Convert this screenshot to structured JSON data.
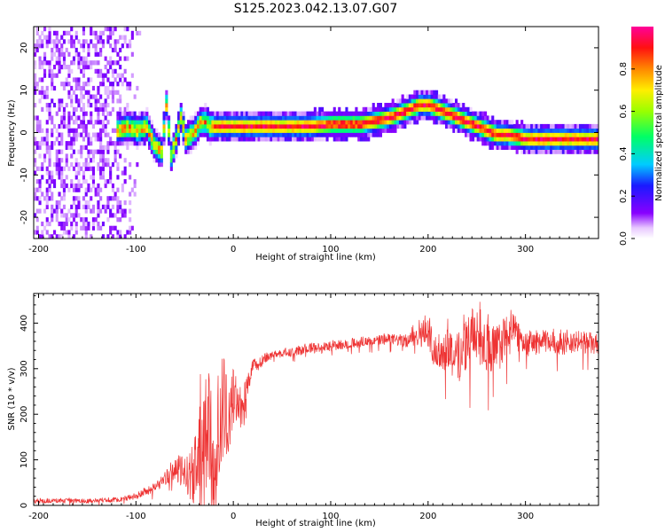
{
  "figure_title": "S125.2023.042.13.07.G07",
  "colors": {
    "snr_line": "#ee3333",
    "frame": "#000000"
  },
  "chart_data": [
    {
      "type": "heatmap",
      "title": "",
      "xlabel": "Height of straight line (km)",
      "ylabel": "Frequency (Hz)",
      "xlim": [
        -205,
        375
      ],
      "ylim": [
        -25,
        25
      ],
      "xticks": [
        -200,
        -100,
        0,
        100,
        200,
        300
      ],
      "yticks": [
        -20,
        -10,
        0,
        10,
        20
      ],
      "colorbar": {
        "label": "Normalized spectral amplitude",
        "range": [
          0,
          1
        ],
        "ticks": [
          "0.0",
          "0.2",
          "0.4",
          "0.6",
          "0.8"
        ],
        "tick_values": [
          0.0,
          0.2,
          0.4,
          0.6,
          0.8
        ],
        "colormap": "rainbow (white-violet-blue-cyan-green-yellow-red-magenta)"
      },
      "ridge": {
        "description": "frequency of peak spectral amplitude vs height",
        "x": [
          -120,
          -110,
          -100,
          -90,
          -85,
          -80,
          -75,
          -70,
          -65,
          -60,
          -55,
          -50,
          -45,
          -40,
          -35,
          -30,
          -25,
          -20,
          0,
          20,
          50,
          80,
          100,
          130,
          150,
          165,
          180,
          190,
          200,
          210,
          220,
          230,
          240,
          250,
          260,
          270,
          280,
          290,
          300,
          320,
          340,
          375
        ],
        "y": [
          0,
          1,
          0,
          1,
          -2,
          -4,
          -5,
          6,
          -6,
          -2,
          3,
          -2,
          -1,
          0,
          2,
          2,
          1,
          1,
          1,
          1,
          1,
          1,
          1.5,
          1.5,
          2.5,
          3.5,
          5,
          6,
          6,
          5,
          4,
          3,
          2,
          1,
          0,
          -1,
          -1,
          -1.5,
          -2,
          -2,
          -2,
          -2
        ]
      },
      "noise_region": {
        "x_range": [
          -205,
          -120
        ],
        "y_range": [
          -25,
          25
        ],
        "level": "low (0.1-0.2)"
      }
    },
    {
      "type": "line",
      "title": "",
      "xlabel": "Height of straight line (km)",
      "ylabel": "SNR (10 * v/v)",
      "xlim": [
        -205,
        375
      ],
      "ylim": [
        0,
        465
      ],
      "xticks": [
        -200,
        -100,
        0,
        100,
        200,
        300
      ],
      "yticks": [
        0,
        100,
        200,
        300,
        400
      ],
      "series": [
        {
          "name": "",
          "x": [
            -205,
            -180,
            -150,
            -120,
            -100,
            -80,
            -70,
            -60,
            -50,
            -40,
            -35,
            -30,
            -25,
            -20,
            -15,
            -10,
            -5,
            0,
            5,
            10,
            15,
            20,
            25,
            30,
            40,
            50,
            60,
            70,
            80,
            90,
            100,
            120,
            140,
            160,
            180,
            190,
            200,
            210,
            220,
            230,
            240,
            250,
            260,
            270,
            280,
            290,
            300,
            320,
            340,
            360,
            375
          ],
          "y": [
            10,
            10,
            10,
            12,
            20,
            40,
            60,
            80,
            70,
            60,
            150,
            100,
            200,
            30,
            170,
            220,
            180,
            240,
            230,
            200,
            270,
            300,
            310,
            320,
            330,
            335,
            335,
            340,
            345,
            345,
            350,
            355,
            360,
            365,
            360,
            380,
            375,
            330,
            350,
            320,
            360,
            380,
            350,
            340,
            370,
            380,
            355,
            360,
            355,
            360,
            350
          ],
          "noise_amplitude": [
            5,
            5,
            5,
            5,
            8,
            10,
            15,
            30,
            40,
            60,
            120,
            140,
            150,
            150,
            140,
            120,
            80,
            60,
            50,
            40,
            30,
            20,
            15,
            12,
            10,
            10,
            10,
            10,
            12,
            12,
            12,
            10,
            10,
            12,
            15,
            30,
            35,
            45,
            50,
            60,
            60,
            65,
            60,
            55,
            50,
            40,
            30,
            25,
            25,
            25,
            25
          ]
        }
      ]
    }
  ]
}
